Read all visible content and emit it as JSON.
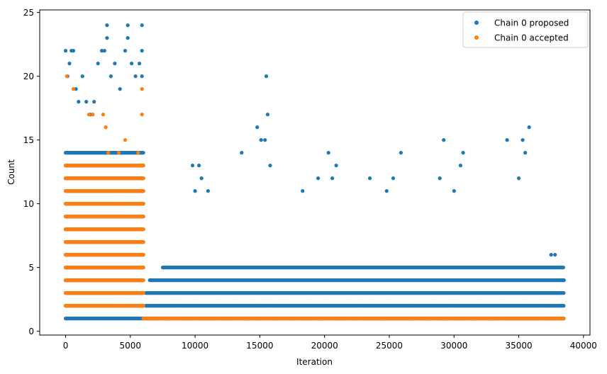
{
  "chart_data": {
    "type": "scatter",
    "title": "",
    "xlabel": "Iteration",
    "ylabel": "Count",
    "xlim": [
      -2000,
      40500
    ],
    "ylim": [
      -0.3,
      25.2
    ],
    "xticks": [
      0,
      5000,
      10000,
      15000,
      20000,
      25000,
      30000,
      35000,
      40000
    ],
    "yticks": [
      0,
      5,
      10,
      15,
      20,
      25
    ],
    "grid": false,
    "legend_position": "top-right",
    "series": [
      {
        "name": "Chain 0 proposed",
        "color": "#1f77b4",
        "points": [
          [
            0,
            22
          ],
          [
            150,
            20
          ],
          [
            300,
            21
          ],
          [
            450,
            22
          ],
          [
            600,
            22
          ],
          [
            800,
            19
          ],
          [
            1000,
            18
          ],
          [
            1300,
            20
          ],
          [
            1600,
            18
          ],
          [
            1900,
            17
          ],
          [
            2200,
            18
          ],
          [
            2500,
            21
          ],
          [
            2800,
            22
          ],
          [
            3000,
            22
          ],
          [
            3200,
            24
          ],
          [
            3200,
            23
          ],
          [
            3500,
            20
          ],
          [
            3800,
            21
          ],
          [
            4200,
            19
          ],
          [
            4600,
            22
          ],
          [
            4800,
            24
          ],
          [
            4800,
            23
          ],
          [
            5100,
            21
          ],
          [
            5400,
            20
          ],
          [
            5700,
            21
          ],
          [
            5900,
            24
          ],
          [
            5900,
            22
          ],
          [
            5900,
            20
          ],
          [
            9800,
            13
          ],
          [
            10300,
            13
          ],
          [
            10500,
            12
          ],
          [
            10000,
            11
          ],
          [
            11000,
            11
          ],
          [
            13600,
            14
          ],
          [
            14800,
            16
          ],
          [
            15100,
            15
          ],
          [
            15500,
            20
          ],
          [
            15600,
            17
          ],
          [
            15800,
            13
          ],
          [
            15400,
            15
          ],
          [
            18300,
            11
          ],
          [
            19500,
            12
          ],
          [
            20300,
            14
          ],
          [
            20600,
            12
          ],
          [
            20900,
            13
          ],
          [
            23500,
            12
          ],
          [
            24800,
            11
          ],
          [
            25900,
            14
          ],
          [
            25300,
            12
          ],
          [
            28900,
            12
          ],
          [
            29200,
            15
          ],
          [
            30000,
            11
          ],
          [
            30500,
            13
          ],
          [
            30700,
            14
          ],
          [
            34100,
            15
          ],
          [
            35000,
            12
          ],
          [
            35300,
            15
          ],
          [
            35500,
            14
          ],
          [
            35800,
            16
          ],
          [
            37500,
            6
          ],
          [
            37800,
            6
          ]
        ],
        "dense_bands": [
          {
            "x": [
              0,
              6000
            ],
            "y": [
              1,
              14
            ],
            "note": "near-continuous at each integer count"
          },
          {
            "x": [
              6200,
              38500
            ],
            "y": [
              1,
              3
            ],
            "note": "continuous bands"
          },
          {
            "x": [
              6500,
              38500
            ],
            "y": [
              4,
              4
            ]
          },
          {
            "x": [
              7500,
              38500
            ],
            "y": [
              5,
              5
            ]
          }
        ]
      },
      {
        "name": "Chain 0 accepted",
        "color": "#ff7f0e",
        "points": [
          [
            100,
            20
          ],
          [
            600,
            19
          ],
          [
            1800,
            17
          ],
          [
            2100,
            17
          ],
          [
            2900,
            17
          ],
          [
            3100,
            16
          ],
          [
            4600,
            15
          ],
          [
            5900,
            19
          ],
          [
            5900,
            17
          ],
          [
            5600,
            14
          ],
          [
            3300,
            14
          ],
          [
            4100,
            14
          ]
        ],
        "dense_bands": [
          {
            "x": [
              0,
              6000
            ],
            "y": [
              2,
              13
            ],
            "note": "dense at each integer count"
          },
          {
            "x": [
              6000,
              38500
            ],
            "y": [
              1,
              1
            ],
            "note": "continuous band"
          }
        ]
      }
    ]
  }
}
